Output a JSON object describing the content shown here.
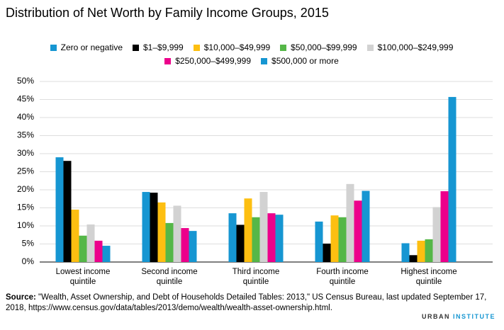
{
  "chart_data": {
    "type": "bar",
    "title": "Distribution of Net Worth by Family Income Groups, 2015",
    "categories": [
      "Lowest income quintile",
      "Second income quintile",
      "Third income quintile",
      "Fourth income quintile",
      "Highest income quintile"
    ],
    "series": [
      {
        "name": "Zero or negative",
        "color": "#1696d2",
        "values": [
          29.0,
          19.4,
          13.5,
          11.2,
          5.2
        ]
      },
      {
        "name": "$1–$9,999",
        "color": "#000000",
        "values": [
          28.0,
          19.2,
          10.3,
          5.1,
          1.9
        ]
      },
      {
        "name": "$10,000–$49,999",
        "color": "#fdbf11",
        "values": [
          14.5,
          16.5,
          17.6,
          12.9,
          5.9
        ]
      },
      {
        "name": "$50,000–$99,999",
        "color": "#55b748",
        "values": [
          7.3,
          10.8,
          12.4,
          12.4,
          6.3
        ]
      },
      {
        "name": "$100,000–$249,999",
        "color": "#d2d2d2",
        "values": [
          10.4,
          15.6,
          19.4,
          21.6,
          15.2
        ]
      },
      {
        "name": "$250,000–$499,999",
        "color": "#ec008b",
        "values": [
          5.9,
          9.4,
          13.5,
          17.0,
          19.6
        ]
      },
      {
        "name": "$500,000 or more",
        "color": "#1696d2",
        "values": [
          4.5,
          8.6,
          13.1,
          19.7,
          45.7
        ]
      }
    ],
    "ylim": [
      0,
      50
    ],
    "yticks": [
      {
        "value": 0,
        "label": "0%"
      },
      {
        "value": 5,
        "label": "5%"
      },
      {
        "value": 10,
        "label": "10%"
      },
      {
        "value": 15,
        "label": "15%"
      },
      {
        "value": 20,
        "label": "20%"
      },
      {
        "value": 25,
        "label": "25%"
      },
      {
        "value": 30,
        "label": "30%"
      },
      {
        "value": 35,
        "label": "35%"
      },
      {
        "value": 40,
        "label": "40%"
      },
      {
        "value": 45,
        "label": "45%"
      },
      {
        "value": 50,
        "label": "50%"
      }
    ],
    "grid": true,
    "legend": "top"
  },
  "source": {
    "label": "Source:",
    "text": "\"Wealth, Asset Ownership, and Debt of Households Detailed Tables: 2013,\" US Census Bureau, last updated September 17, 2018, https://www.census.gov/data/tables/2013/demo/wealth/wealth-asset-ownership.html."
  },
  "brand": [
    "URBAN",
    "INSTITUTE"
  ]
}
